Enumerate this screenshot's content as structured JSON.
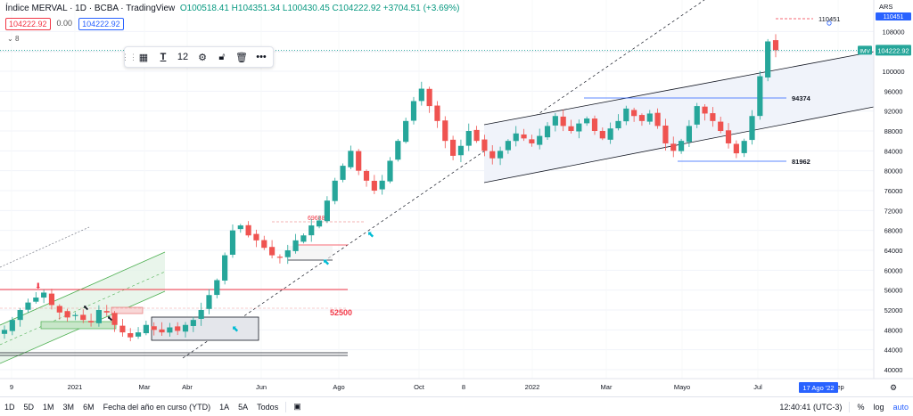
{
  "header": {
    "symbol": "Índice MERVAL · 1D · BCBA · TradingView",
    "ohlc": "O100518.41 H104351.34 L100430.45 C104222.92 +3704.51 (+3.69%)",
    "sell_price": "104222.92",
    "spread": "0.00",
    "buy_price": "104222.92",
    "collapse_count": "8"
  },
  "toolbar": {
    "font_size": "12"
  },
  "price_axis": {
    "currency": "ARS",
    "current_price": "104222.92",
    "symbol_label": "IMV",
    "top_price_label": "110451"
  },
  "annotations": {
    "target_high": "110451",
    "resistance": "94374",
    "support": "81962",
    "label_69688": "69688",
    "label_52500": "52500"
  },
  "time_axis": {
    "highlight_date": "17 Ago '22"
  },
  "bottombar": {
    "ranges": [
      "1D",
      "5D",
      "1M",
      "3M",
      "6M",
      "Fecha del año en curso (YTD)",
      "1A",
      "5A",
      "Todos"
    ],
    "clock": "12:40:41 (UTC-3)",
    "percent": "%",
    "log": "log",
    "auto": "auto"
  },
  "colors": {
    "up": "#26a69a",
    "down": "#ef5350",
    "line_red": "#f23645",
    "channel_fill": "#f0f3fa",
    "green_zone": "#e3f3e6",
    "blue_line": "#2962ff",
    "arrow_cyan": "#00bcd4"
  },
  "chart_data": {
    "type": "candlestick",
    "ylim": [
      38000,
      118000
    ],
    "x_tick_labels": [
      "9",
      "2021",
      "Mar",
      "Abr",
      "Jun",
      "Ago",
      "Oct",
      "8",
      "2022",
      "Mar",
      "Mayo",
      "Jul",
      "Sep"
    ],
    "y_tick_labels": [
      "40000",
      "44000",
      "48000",
      "52000",
      "56000",
      "60000",
      "64000",
      "68000",
      "72000",
      "76000",
      "80000",
      "84000",
      "88000",
      "92000",
      "96000",
      "100000",
      "104000",
      "108000"
    ],
    "y_tick_values": [
      40000,
      44000,
      48000,
      52000,
      56000,
      60000,
      64000,
      68000,
      72000,
      76000,
      80000,
      84000,
      88000,
      92000,
      96000,
      100000,
      104000,
      108000
    ],
    "closes": [
      48000,
      50000,
      52000,
      53500,
      54500,
      55500,
      53000,
      51500,
      50500,
      51000,
      50000,
      49500,
      52000,
      51500,
      49000,
      47500,
      46500,
      47500,
      49000,
      48000,
      47500,
      48500,
      47800,
      49000,
      50000,
      52000,
      55000,
      58000,
      63000,
      68000,
      69000,
      67000,
      66000,
      64500,
      63000,
      62500,
      64000,
      66000,
      67000,
      69000,
      70000,
      74000,
      78000,
      81000,
      84000,
      80000,
      78000,
      76000,
      78000,
      82000,
      86000,
      90000,
      94000,
      96500,
      93000,
      90000,
      86000,
      83000,
      85000,
      88000,
      86000,
      84000,
      82500,
      84000,
      86000,
      87500,
      86500,
      85500,
      87000,
      89000,
      91000,
      89000,
      88000,
      89500,
      90500,
      88000,
      86500,
      88500,
      90000,
      92500,
      91000,
      90000,
      91500,
      89000,
      85500,
      84000,
      86000,
      89000,
      93000,
      91500,
      90000,
      88000,
      85500,
      83500,
      86000,
      91000,
      99000,
      106000,
      104222.92
    ]
  }
}
